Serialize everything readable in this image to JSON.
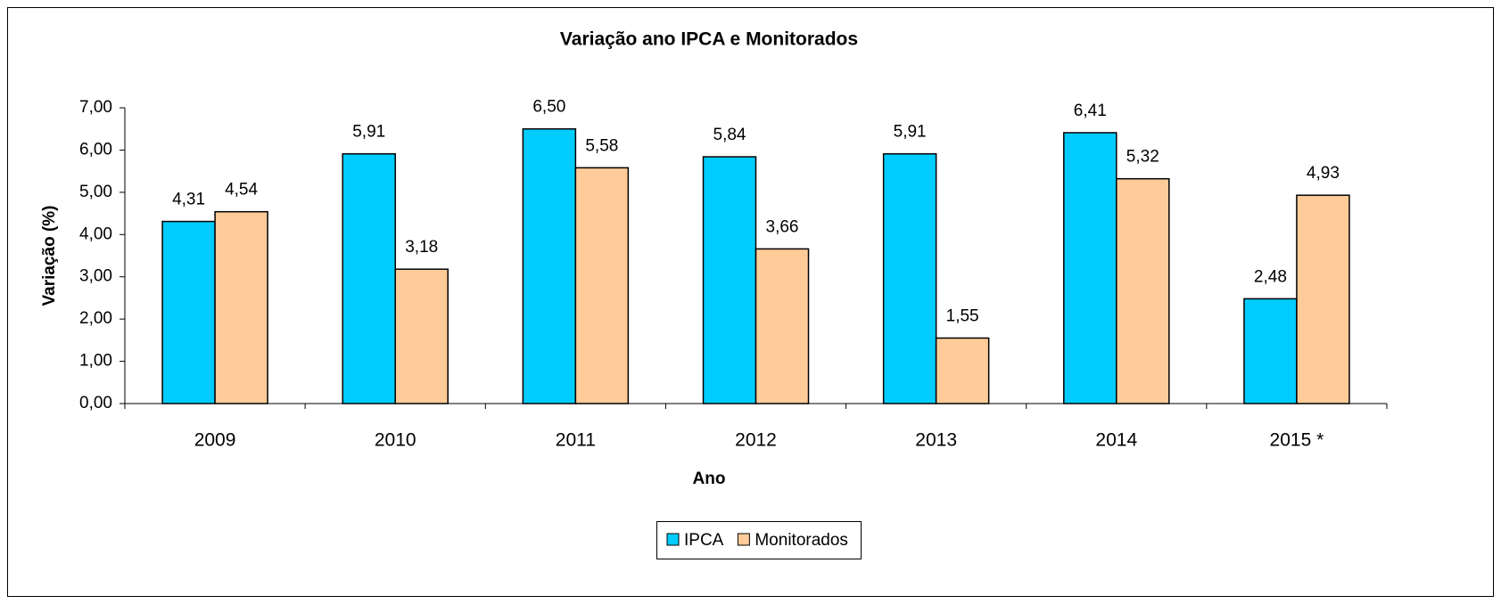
{
  "chart_data": {
    "type": "bar",
    "title": "Variação ano IPCA e Monitorados",
    "x_label": "Ano",
    "y_label": "Variação (%)",
    "categories": [
      "2009",
      "2010",
      "2011",
      "2012",
      "2013",
      "2014",
      "2015 *"
    ],
    "series": [
      {
        "name": "IPCA",
        "color": "#00ccff",
        "values": [
          4.31,
          5.91,
          6.5,
          5.84,
          5.91,
          6.41,
          2.48
        ],
        "value_labels": [
          "4,31",
          "5,91",
          "6,50",
          "5,84",
          "5,91",
          "6,41",
          "2,48"
        ]
      },
      {
        "name": "Monitorados",
        "color": "#ffcc99",
        "values": [
          4.54,
          3.18,
          5.58,
          3.66,
          1.55,
          5.32,
          4.93
        ],
        "value_labels": [
          "4,54",
          "3,18",
          "5,58",
          "3,66",
          "1,55",
          "5,32",
          "4,93"
        ]
      }
    ],
    "ylim": [
      0,
      7
    ],
    "yticks": [
      {
        "value": 0,
        "label": "0,00"
      },
      {
        "value": 1,
        "label": "1,00"
      },
      {
        "value": 2,
        "label": "2,00"
      },
      {
        "value": 3,
        "label": "3,00"
      },
      {
        "value": 4,
        "label": "4,00"
      },
      {
        "value": 5,
        "label": "5,00"
      },
      {
        "value": 6,
        "label": "6,00"
      },
      {
        "value": 7,
        "label": "7,00"
      }
    ],
    "grid": false,
    "legend": "bottom"
  }
}
